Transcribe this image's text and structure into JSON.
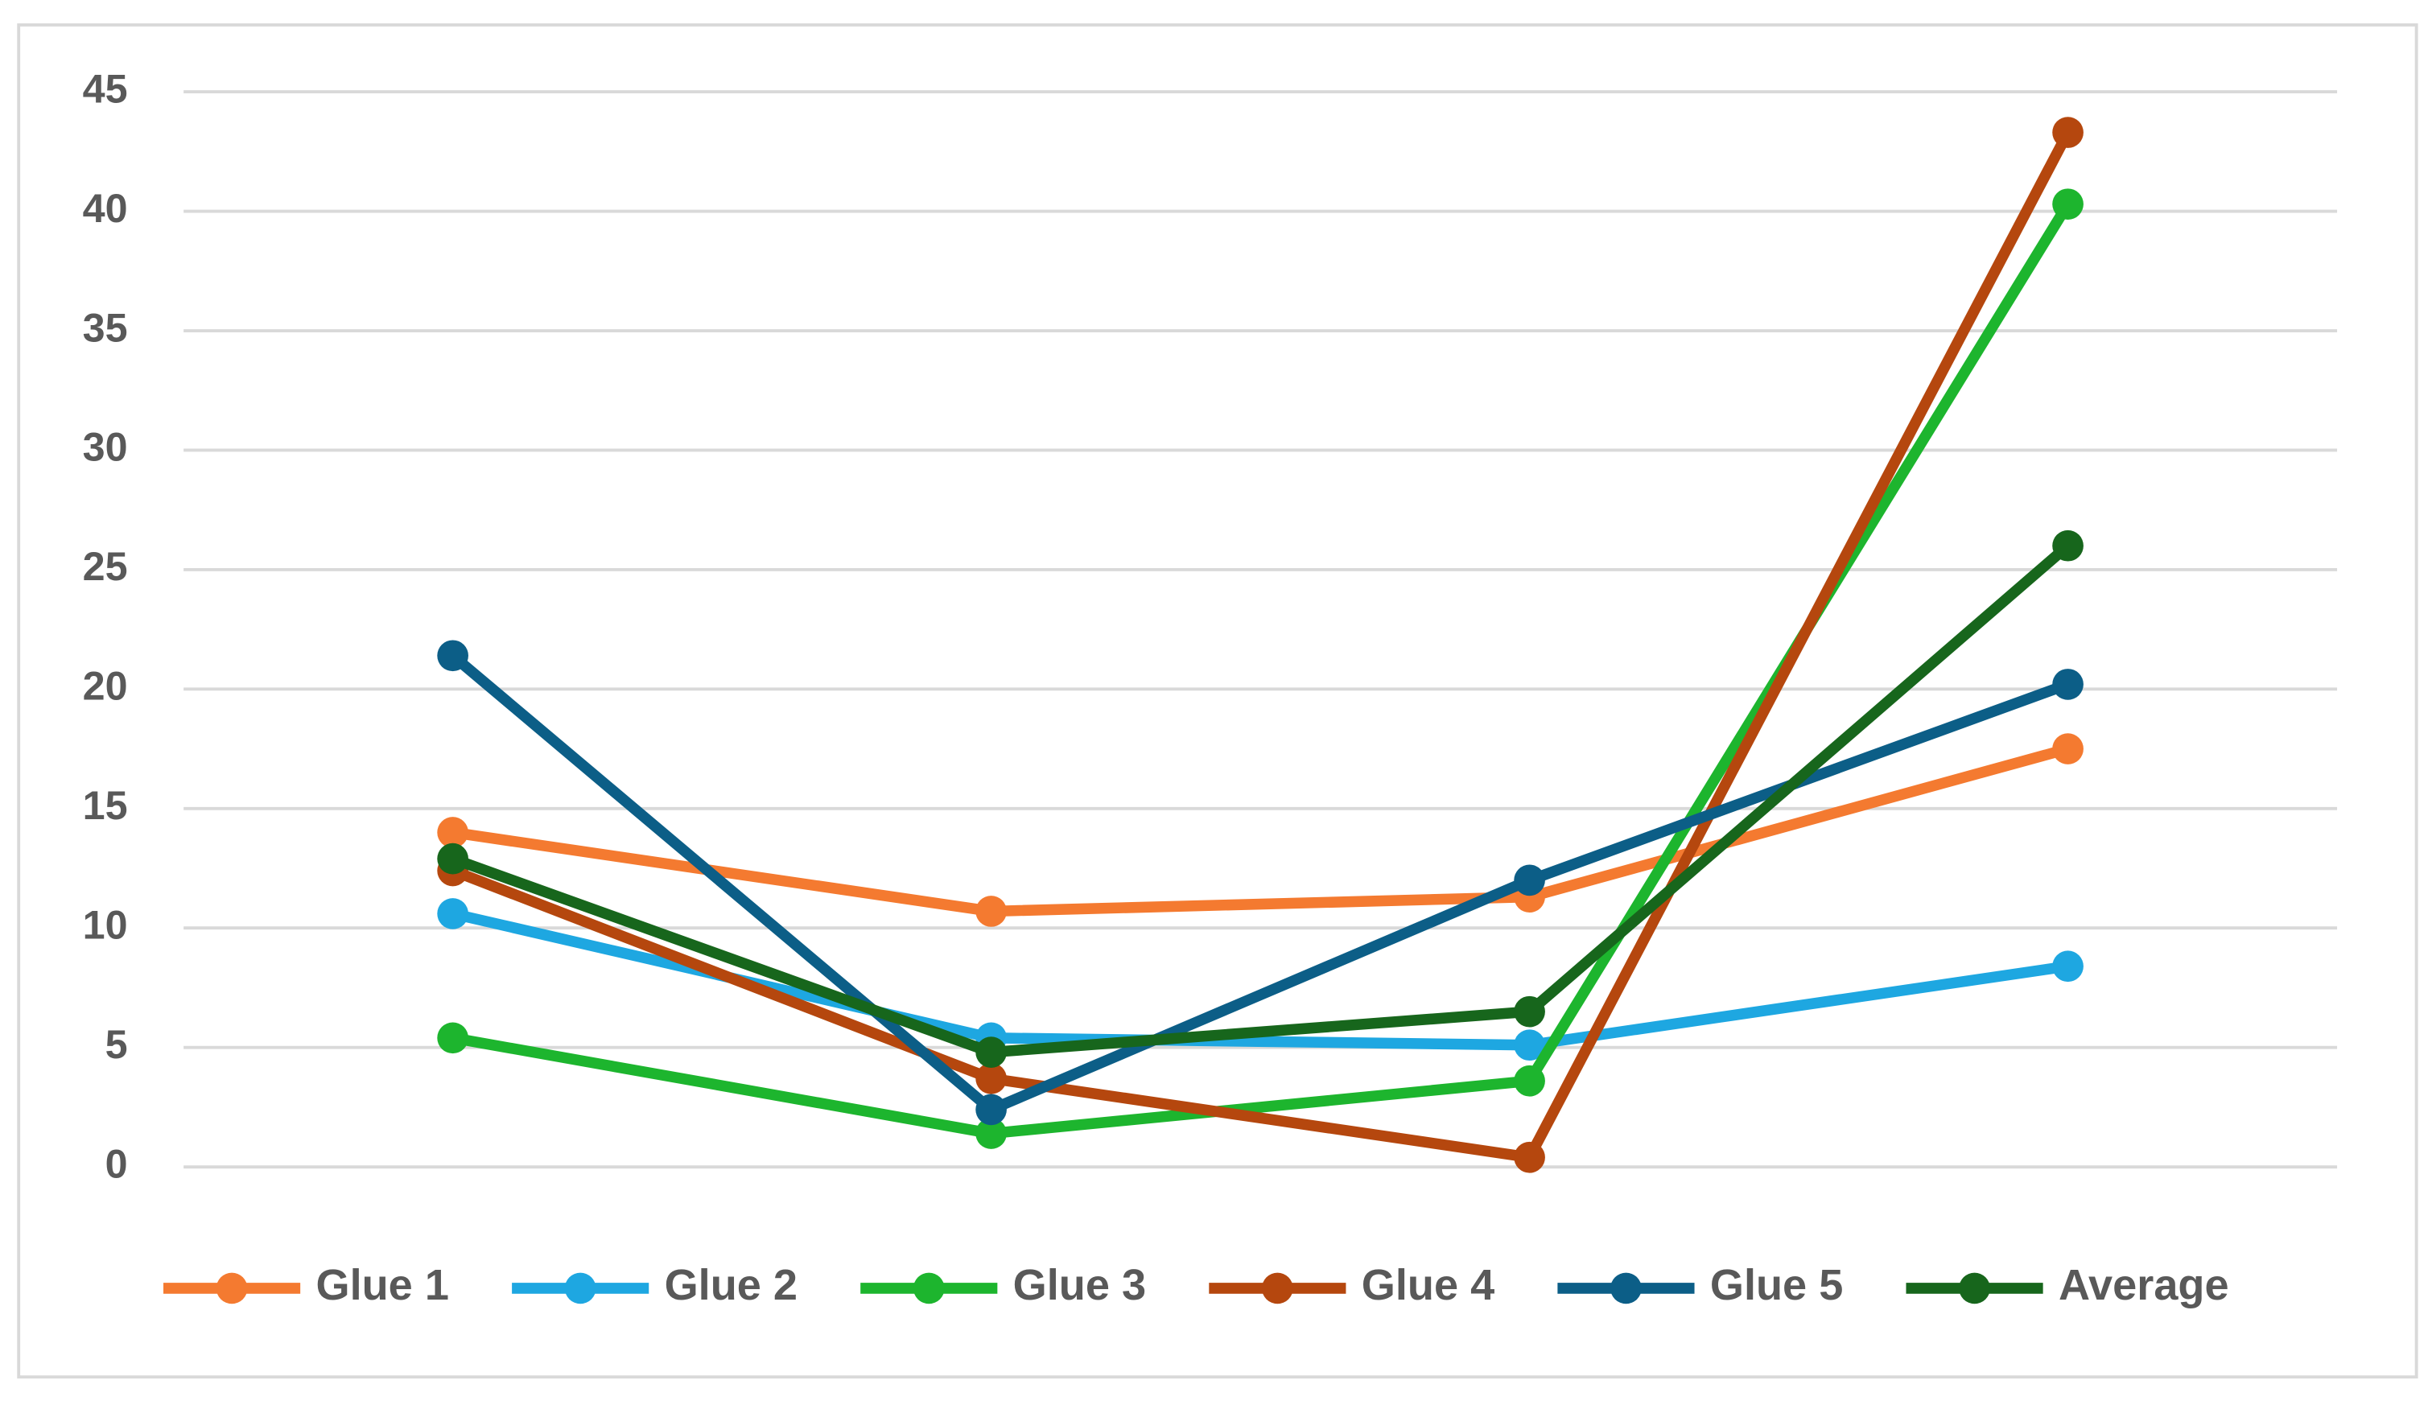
{
  "chart_data": {
    "type": "line",
    "categories": [
      null,
      null,
      null,
      null
    ],
    "series": [
      {
        "name": "Glue 1",
        "color": "#f47a30",
        "values": [
          14.0,
          10.7,
          11.3,
          17.5
        ]
      },
      {
        "name": "Glue 2",
        "color": "#1ea7e1",
        "values": [
          10.6,
          5.4,
          5.1,
          8.4
        ]
      },
      {
        "name": "Glue 3",
        "color": "#1db52e",
        "values": [
          5.4,
          1.4,
          3.6,
          40.3
        ]
      },
      {
        "name": "Glue 4",
        "color": "#b5470e",
        "values": [
          12.4,
          3.7,
          0.4,
          43.3
        ]
      },
      {
        "name": "Glue 5",
        "color": "#0c5e87",
        "values": [
          21.4,
          2.4,
          12.0,
          20.2
        ]
      },
      {
        "name": "Average",
        "color": "#17661c",
        "values": [
          12.9,
          4.8,
          6.5,
          26.0
        ]
      }
    ],
    "ylim": [
      0,
      45
    ],
    "yticks": [
      0,
      5,
      10,
      15,
      20,
      25,
      30,
      35,
      40,
      45
    ],
    "grid": true,
    "legend": "bottom"
  }
}
